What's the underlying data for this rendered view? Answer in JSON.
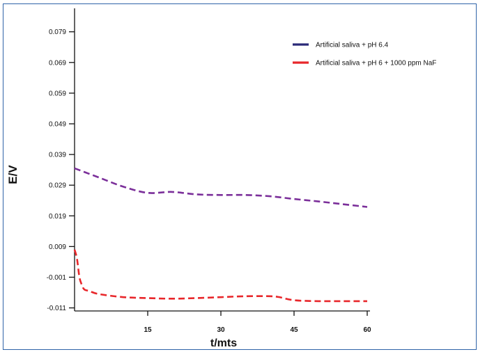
{
  "chart_data": {
    "type": "line",
    "title": "",
    "xlabel": "t/mts",
    "ylabel": "E/V",
    "xlim": [
      0,
      60
    ],
    "ylim": [
      -0.012,
      0.088
    ],
    "x_ticks": [
      15,
      30,
      45,
      60
    ],
    "y_ticks": [
      -0.011,
      -0.001,
      0.009,
      0.019,
      0.029,
      0.039,
      0.049,
      0.059,
      0.069,
      0.079
    ],
    "y_tick_labels": [
      "-0.011",
      "-0.001",
      "0.009",
      "0.019",
      "0.029",
      "0.039",
      "0.049",
      "0.059",
      "0.069",
      "0.079"
    ],
    "legend_position": "top-right",
    "grid": false,
    "legend": [
      {
        "label": "Artificial saliva + pH 6.4",
        "color": "#2b2a78"
      },
      {
        "label": "Artificial saliva + pH 6 + 1000 ppm NaF",
        "color": "#e8272b"
      }
    ],
    "series": [
      {
        "name": "Artificial saliva + pH 6.4",
        "color": "#7b2f9a",
        "style": "dashed",
        "x": [
          0,
          5,
          10,
          15,
          20,
          25,
          30,
          35,
          40,
          45,
          50,
          55,
          60
        ],
        "y": [
          0.0345,
          0.0315,
          0.0285,
          0.0265,
          0.0268,
          0.026,
          0.0258,
          0.0258,
          0.0254,
          0.0245,
          0.0237,
          0.0228,
          0.0219
        ]
      },
      {
        "name": "Artificial saliva + pH 6 + 1000 ppm NaF",
        "color": "#e8272b",
        "style": "dashed",
        "x": [
          0,
          0.5,
          1,
          1.5,
          2,
          3,
          5,
          10,
          15,
          20,
          25,
          30,
          35,
          40,
          42,
          45,
          50,
          55,
          60
        ],
        "y": [
          0.008,
          0.005,
          -0.001,
          -0.0035,
          -0.005,
          -0.0055,
          -0.0065,
          -0.0075,
          -0.0078,
          -0.008,
          -0.0078,
          -0.0075,
          -0.0072,
          -0.0072,
          -0.0075,
          -0.0085,
          -0.0088,
          -0.0088,
          -0.0088
        ]
      }
    ]
  }
}
